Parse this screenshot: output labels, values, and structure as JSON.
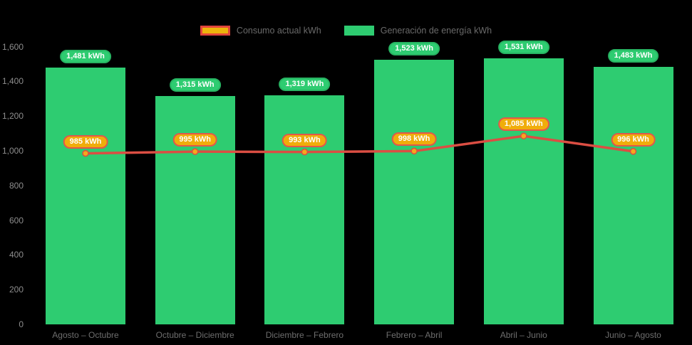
{
  "chart": {
    "legend": {
      "items": [
        {
          "label": "Consumo actual kWh",
          "swatch_fill": "#EDB40C",
          "swatch_border": "#E2453C"
        },
        {
          "label": "Generación de energía kWh",
          "swatch_fill": "#2ECC71",
          "swatch_border": "#2ECC71"
        }
      ]
    },
    "background": "#000000"
  },
  "chart_data": {
    "type": "bar",
    "title": "",
    "xlabel": "",
    "ylabel": "",
    "grid": false,
    "legend_position": "top",
    "categories": [
      "Agosto – Octubre",
      "Octubre – Diciembre",
      "Diciembre – Febrero",
      "Febrero – Abril",
      "Abril – Junio",
      "Junio – Agosto"
    ],
    "series": [
      {
        "name": "Consumo actual kWh",
        "type": "line",
        "line_color": "#DB4E43",
        "marker_fill": "#F5A81D",
        "marker_border": "#DB4E43",
        "label_fill": "#F0AD0B",
        "label_border": "#E2574B",
        "values": [
          985,
          995,
          993,
          998,
          1085,
          996
        ],
        "value_labels": [
          "985 kWh",
          "995 kWh",
          "993 kWh",
          "998 kWh",
          "1,085 kWh",
          "996 kWh"
        ]
      },
      {
        "name": "Generación de energía kWh",
        "type": "bar",
        "color": "#2ECC71",
        "label_fill": "#2ECC71",
        "label_border": "#27B462",
        "values": [
          1481,
          1315,
          1319,
          1523,
          1531,
          1483
        ],
        "value_labels": [
          "1,481 kWh",
          "1,315 kWh",
          "1,319 kWh",
          "1,523 kWh",
          "1,531 kWh",
          "1,483 kWh"
        ]
      }
    ],
    "yticks": [
      "1,600",
      "1,400",
      "1,200",
      "1,000",
      "800",
      "600",
      "400",
      "200",
      "0"
    ],
    "ylim": [
      0,
      1600
    ]
  }
}
